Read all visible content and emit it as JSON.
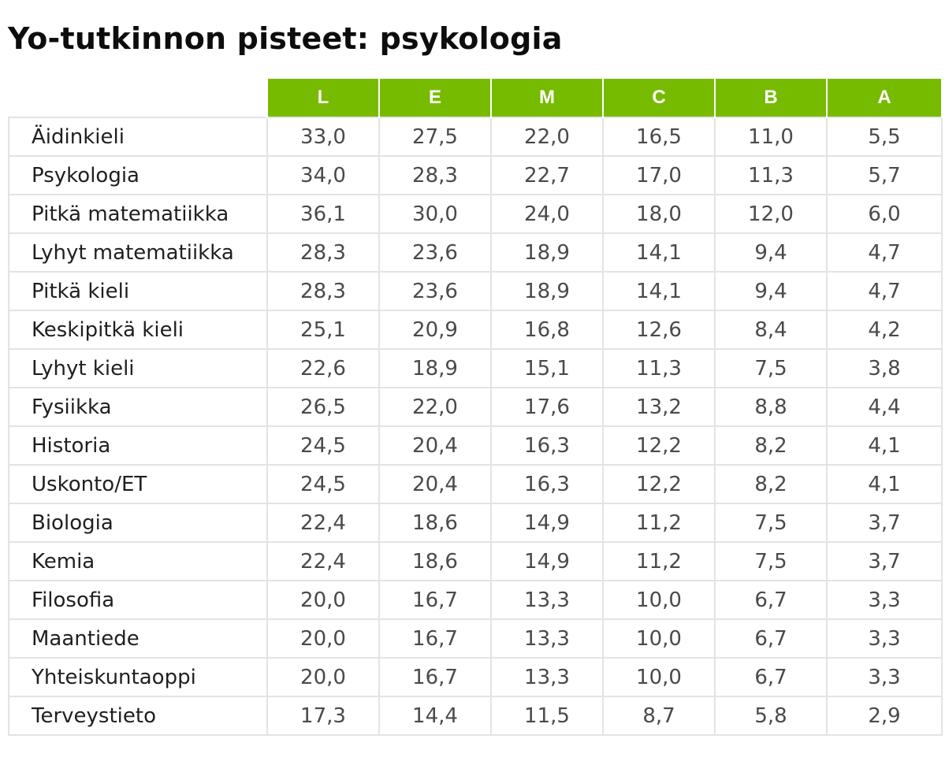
{
  "title": "Yo-tutkinnon pisteet: psykologia",
  "colors": {
    "header_background": "#77bb00",
    "header_text": "#ffffff",
    "grid_lines": "#e3e3e3"
  },
  "chart_data": {
    "type": "table",
    "title": "Yo-tutkinnon pisteet: psykologia",
    "columns": [
      "L",
      "E",
      "M",
      "C",
      "B",
      "A"
    ],
    "rows": [
      {
        "subject": "Äidinkieli",
        "values": [
          "33,0",
          "27,5",
          "22,0",
          "16,5",
          "11,0",
          "5,5"
        ]
      },
      {
        "subject": "Psykologia",
        "values": [
          "34,0",
          "28,3",
          "22,7",
          "17,0",
          "11,3",
          "5,7"
        ]
      },
      {
        "subject": "Pitkä matematiikka",
        "values": [
          "36,1",
          "30,0",
          "24,0",
          "18,0",
          "12,0",
          "6,0"
        ]
      },
      {
        "subject": "Lyhyt matematiikka",
        "values": [
          "28,3",
          "23,6",
          "18,9",
          "14,1",
          "9,4",
          "4,7"
        ]
      },
      {
        "subject": "Pitkä kieli",
        "values": [
          "28,3",
          "23,6",
          "18,9",
          "14,1",
          "9,4",
          "4,7"
        ]
      },
      {
        "subject": "Keskipitkä kieli",
        "values": [
          "25,1",
          "20,9",
          "16,8",
          "12,6",
          "8,4",
          "4,2"
        ]
      },
      {
        "subject": "Lyhyt kieli",
        "values": [
          "22,6",
          "18,9",
          "15,1",
          "11,3",
          "7,5",
          "3,8"
        ]
      },
      {
        "subject": "Fysiikka",
        "values": [
          "26,5",
          "22,0",
          "17,6",
          "13,2",
          "8,8",
          "4,4"
        ]
      },
      {
        "subject": "Historia",
        "values": [
          "24,5",
          "20,4",
          "16,3",
          "12,2",
          "8,2",
          "4,1"
        ]
      },
      {
        "subject": "Uskonto/ET",
        "values": [
          "24,5",
          "20,4",
          "16,3",
          "12,2",
          "8,2",
          "4,1"
        ]
      },
      {
        "subject": "Biologia",
        "values": [
          "22,4",
          "18,6",
          "14,9",
          "11,2",
          "7,5",
          "3,7"
        ]
      },
      {
        "subject": "Kemia",
        "values": [
          "22,4",
          "18,6",
          "14,9",
          "11,2",
          "7,5",
          "3,7"
        ]
      },
      {
        "subject": "Filosofia",
        "values": [
          "20,0",
          "16,7",
          "13,3",
          "10,0",
          "6,7",
          "3,3"
        ]
      },
      {
        "subject": "Maantiede",
        "values": [
          "20,0",
          "16,7",
          "13,3",
          "10,0",
          "6,7",
          "3,3"
        ]
      },
      {
        "subject": "Yhteiskuntaoppi",
        "values": [
          "20,0",
          "16,7",
          "13,3",
          "10,0",
          "6,7",
          "3,3"
        ]
      },
      {
        "subject": "Terveystieto",
        "values": [
          "17,3",
          "14,4",
          "11,5",
          "8,7",
          "5,8",
          "2,9"
        ]
      }
    ]
  }
}
